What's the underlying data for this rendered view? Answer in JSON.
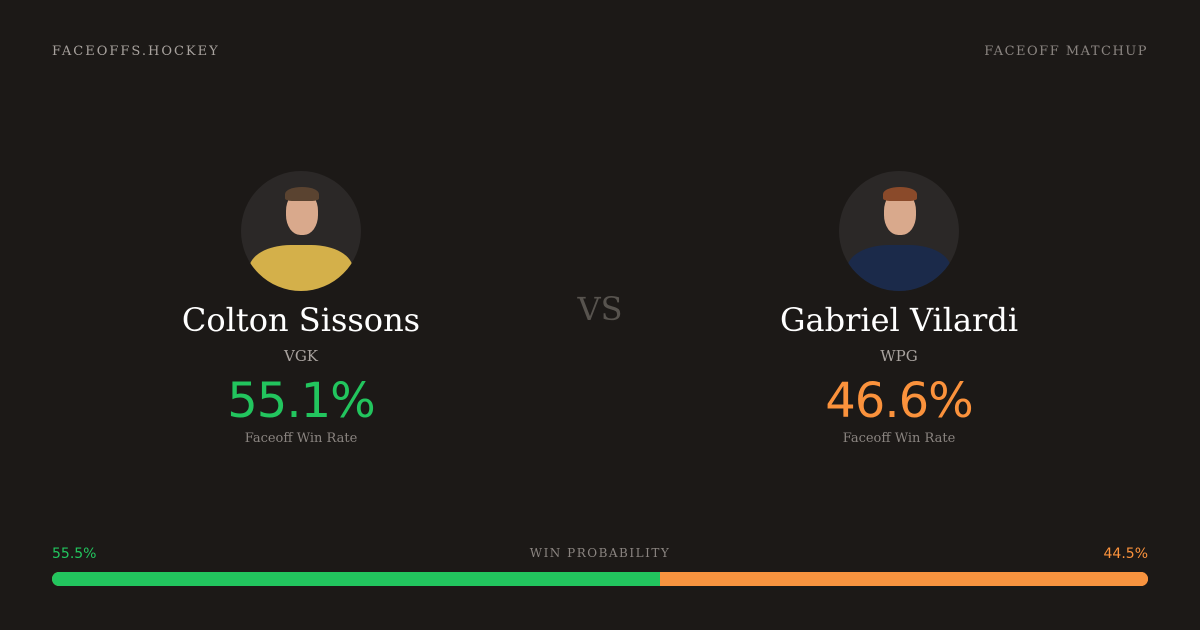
{
  "header": {
    "brand": "FACEOFFS.HOCKEY",
    "tag": "FACEOFF MATCHUP"
  },
  "vs": "VS",
  "players": [
    {
      "name": "Colton Sissons",
      "team": "VGK",
      "rate": "55.1%",
      "rate_label": "Faceoff Win Rate",
      "color": "#22c55e",
      "jersey": "#d4b04a"
    },
    {
      "name": "Gabriel Vilardi",
      "team": "WPG",
      "rate": "46.6%",
      "rate_label": "Faceoff Win Rate",
      "color": "#fb923c",
      "jersey": "#1b2a4a"
    }
  ],
  "win_probability": {
    "title": "WIN PROBABILITY",
    "left": "55.5%",
    "right": "44.5%",
    "left_value": 55.5,
    "right_value": 44.5,
    "left_color": "#22c55e",
    "right_color": "#f7933f"
  }
}
